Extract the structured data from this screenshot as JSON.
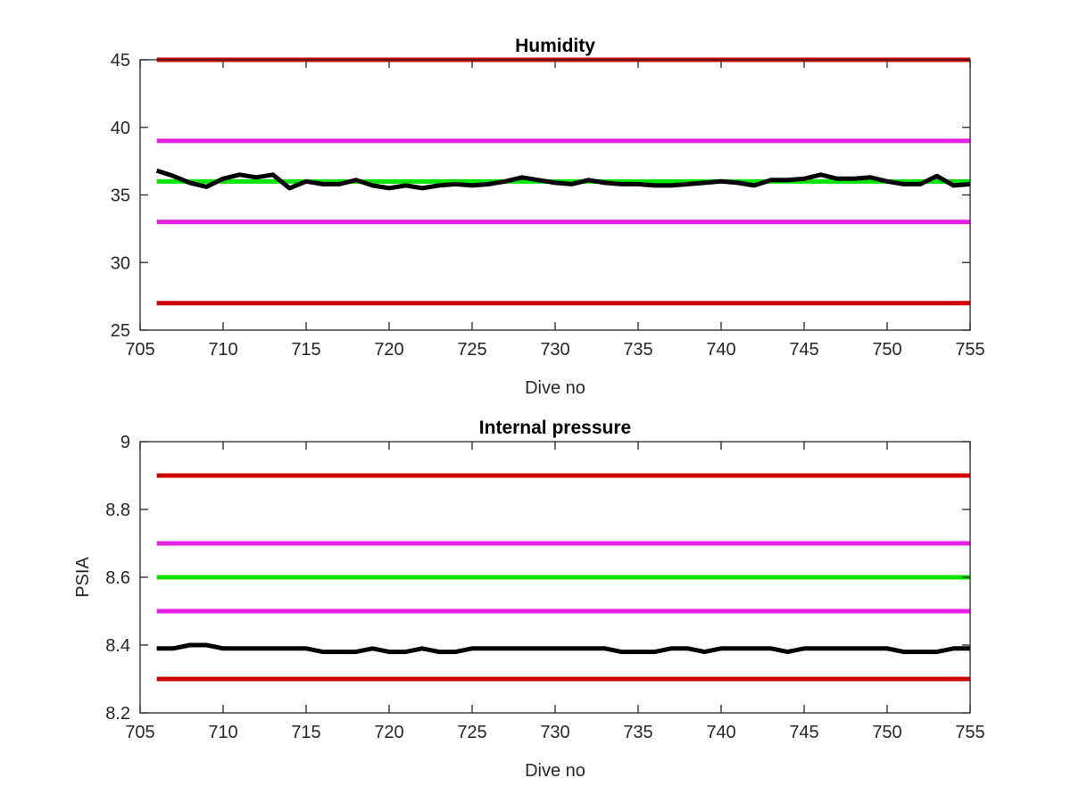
{
  "chart_data": [
    {
      "type": "line",
      "title": "Humidity",
      "xlabel": "Dive no",
      "ylabel": "",
      "xlim": [
        705,
        755
      ],
      "ylim": [
        25,
        45
      ],
      "xticks": [
        "705",
        "710",
        "715",
        "720",
        "725",
        "730",
        "735",
        "740",
        "745",
        "750",
        "755"
      ],
      "yticks": [
        "25",
        "30",
        "35",
        "40",
        "45"
      ],
      "grid": false,
      "reference_lines": [
        {
          "y": 45,
          "color": "#cc0000"
        },
        {
          "y": 39,
          "color": "#e61ee6"
        },
        {
          "y": 36,
          "color": "#00e600"
        },
        {
          "y": 33,
          "color": "#e61ee6"
        },
        {
          "y": 27,
          "color": "#cc0000"
        }
      ],
      "series": [
        {
          "color": "#000000",
          "x": [
            706,
            707,
            708,
            709,
            710,
            711,
            712,
            713,
            714,
            715,
            716,
            717,
            718,
            719,
            720,
            721,
            722,
            723,
            724,
            725,
            726,
            727,
            728,
            729,
            730,
            731,
            732,
            733,
            734,
            735,
            736,
            737,
            738,
            739,
            740,
            741,
            742,
            743,
            744,
            745,
            746,
            747,
            748,
            749,
            750,
            751,
            752,
            753,
            754,
            755
          ],
          "y": [
            36.8,
            36.4,
            35.9,
            35.6,
            36.2,
            36.5,
            36.3,
            36.5,
            35.5,
            36.0,
            35.8,
            35.8,
            36.1,
            35.7,
            35.5,
            35.7,
            35.5,
            35.7,
            35.8,
            35.7,
            35.8,
            36.0,
            36.3,
            36.1,
            35.9,
            35.8,
            36.1,
            35.9,
            35.8,
            35.8,
            35.7,
            35.7,
            35.8,
            35.9,
            36.0,
            35.9,
            35.7,
            36.1,
            36.1,
            36.2,
            36.5,
            36.2,
            36.2,
            36.3,
            36.0,
            35.8,
            35.8,
            36.4,
            35.7,
            35.8
          ]
        }
      ]
    },
    {
      "type": "line",
      "title": "Internal pressure",
      "xlabel": "Dive no",
      "ylabel": "PSIA",
      "xlim": [
        705,
        755
      ],
      "ylim": [
        8.2,
        9
      ],
      "xticks": [
        "705",
        "710",
        "715",
        "720",
        "725",
        "730",
        "735",
        "740",
        "745",
        "750",
        "755"
      ],
      "yticks": [
        "8.2",
        "8.4",
        "8.6",
        "8.8",
        "9"
      ],
      "grid": false,
      "reference_lines": [
        {
          "y": 8.9,
          "color": "#cc0000"
        },
        {
          "y": 8.7,
          "color": "#e61ee6"
        },
        {
          "y": 8.6,
          "color": "#00e600"
        },
        {
          "y": 8.5,
          "color": "#e61ee6"
        },
        {
          "y": 8.3,
          "color": "#cc0000"
        }
      ],
      "series": [
        {
          "color": "#000000",
          "x": [
            706,
            707,
            708,
            709,
            710,
            711,
            712,
            713,
            714,
            715,
            716,
            717,
            718,
            719,
            720,
            721,
            722,
            723,
            724,
            725,
            726,
            727,
            728,
            729,
            730,
            731,
            732,
            733,
            734,
            735,
            736,
            737,
            738,
            739,
            740,
            741,
            742,
            743,
            744,
            745,
            746,
            747,
            748,
            749,
            750,
            751,
            752,
            753,
            754,
            755
          ],
          "y": [
            8.39,
            8.39,
            8.4,
            8.4,
            8.39,
            8.39,
            8.39,
            8.39,
            8.39,
            8.39,
            8.38,
            8.38,
            8.38,
            8.39,
            8.38,
            8.38,
            8.39,
            8.38,
            8.38,
            8.39,
            8.39,
            8.39,
            8.39,
            8.39,
            8.39,
            8.39,
            8.39,
            8.39,
            8.38,
            8.38,
            8.38,
            8.39,
            8.39,
            8.38,
            8.39,
            8.39,
            8.39,
            8.39,
            8.38,
            8.39,
            8.39,
            8.39,
            8.39,
            8.39,
            8.39,
            8.38,
            8.38,
            8.38,
            8.39,
            8.39
          ]
        }
      ]
    }
  ]
}
